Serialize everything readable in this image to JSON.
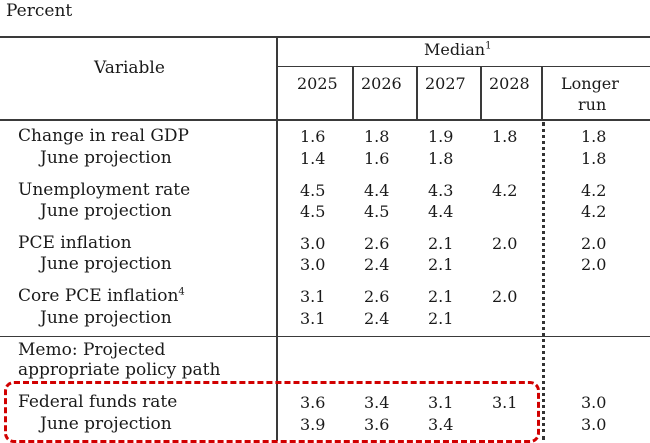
{
  "unit_label": "Percent",
  "header": {
    "variable_label": "Variable",
    "median_label": "Median",
    "median_footnote": "1",
    "years": [
      "2025",
      "2026",
      "2027",
      "2028"
    ],
    "longer_run_line1": "Longer",
    "longer_run_line2": "run"
  },
  "rows": [
    {
      "label": "Change in real GDP",
      "footnote": "",
      "values": [
        "1.6",
        "1.8",
        "1.9",
        "1.8"
      ],
      "longer": "1.8",
      "june_label": "June projection",
      "june_values": [
        "1.4",
        "1.6",
        "1.8",
        ""
      ],
      "june_longer": "1.8"
    },
    {
      "label": "Unemployment rate",
      "footnote": "",
      "values": [
        "4.5",
        "4.4",
        "4.3",
        "4.2"
      ],
      "longer": "4.2",
      "june_label": "June projection",
      "june_values": [
        "4.5",
        "4.5",
        "4.4",
        ""
      ],
      "june_longer": "4.2"
    },
    {
      "label": "PCE inflation",
      "footnote": "",
      "values": [
        "3.0",
        "2.6",
        "2.1",
        "2.0"
      ],
      "longer": "2.0",
      "june_label": "June projection",
      "june_values": [
        "3.0",
        "2.4",
        "2.1",
        ""
      ],
      "june_longer": "2.0"
    },
    {
      "label": "Core PCE inflation",
      "footnote": "4",
      "values": [
        "3.1",
        "2.6",
        "2.1",
        "2.0"
      ],
      "longer": "",
      "june_label": "June projection",
      "june_values": [
        "3.1",
        "2.4",
        "2.1",
        ""
      ],
      "june_longer": ""
    }
  ],
  "memo": {
    "line1": "Memo: Projected",
    "line2": "appropriate policy path"
  },
  "fed_funds": {
    "label": "Federal funds rate",
    "values": [
      "3.6",
      "3.4",
      "3.1",
      "3.1"
    ],
    "longer": "3.0",
    "june_label": "June projection",
    "june_values": [
      "3.9",
      "3.6",
      "3.4",
      ""
    ],
    "june_longer": "3.0"
  },
  "colors": {
    "highlight": "#d10000",
    "rule": "#3a3a3a"
  }
}
